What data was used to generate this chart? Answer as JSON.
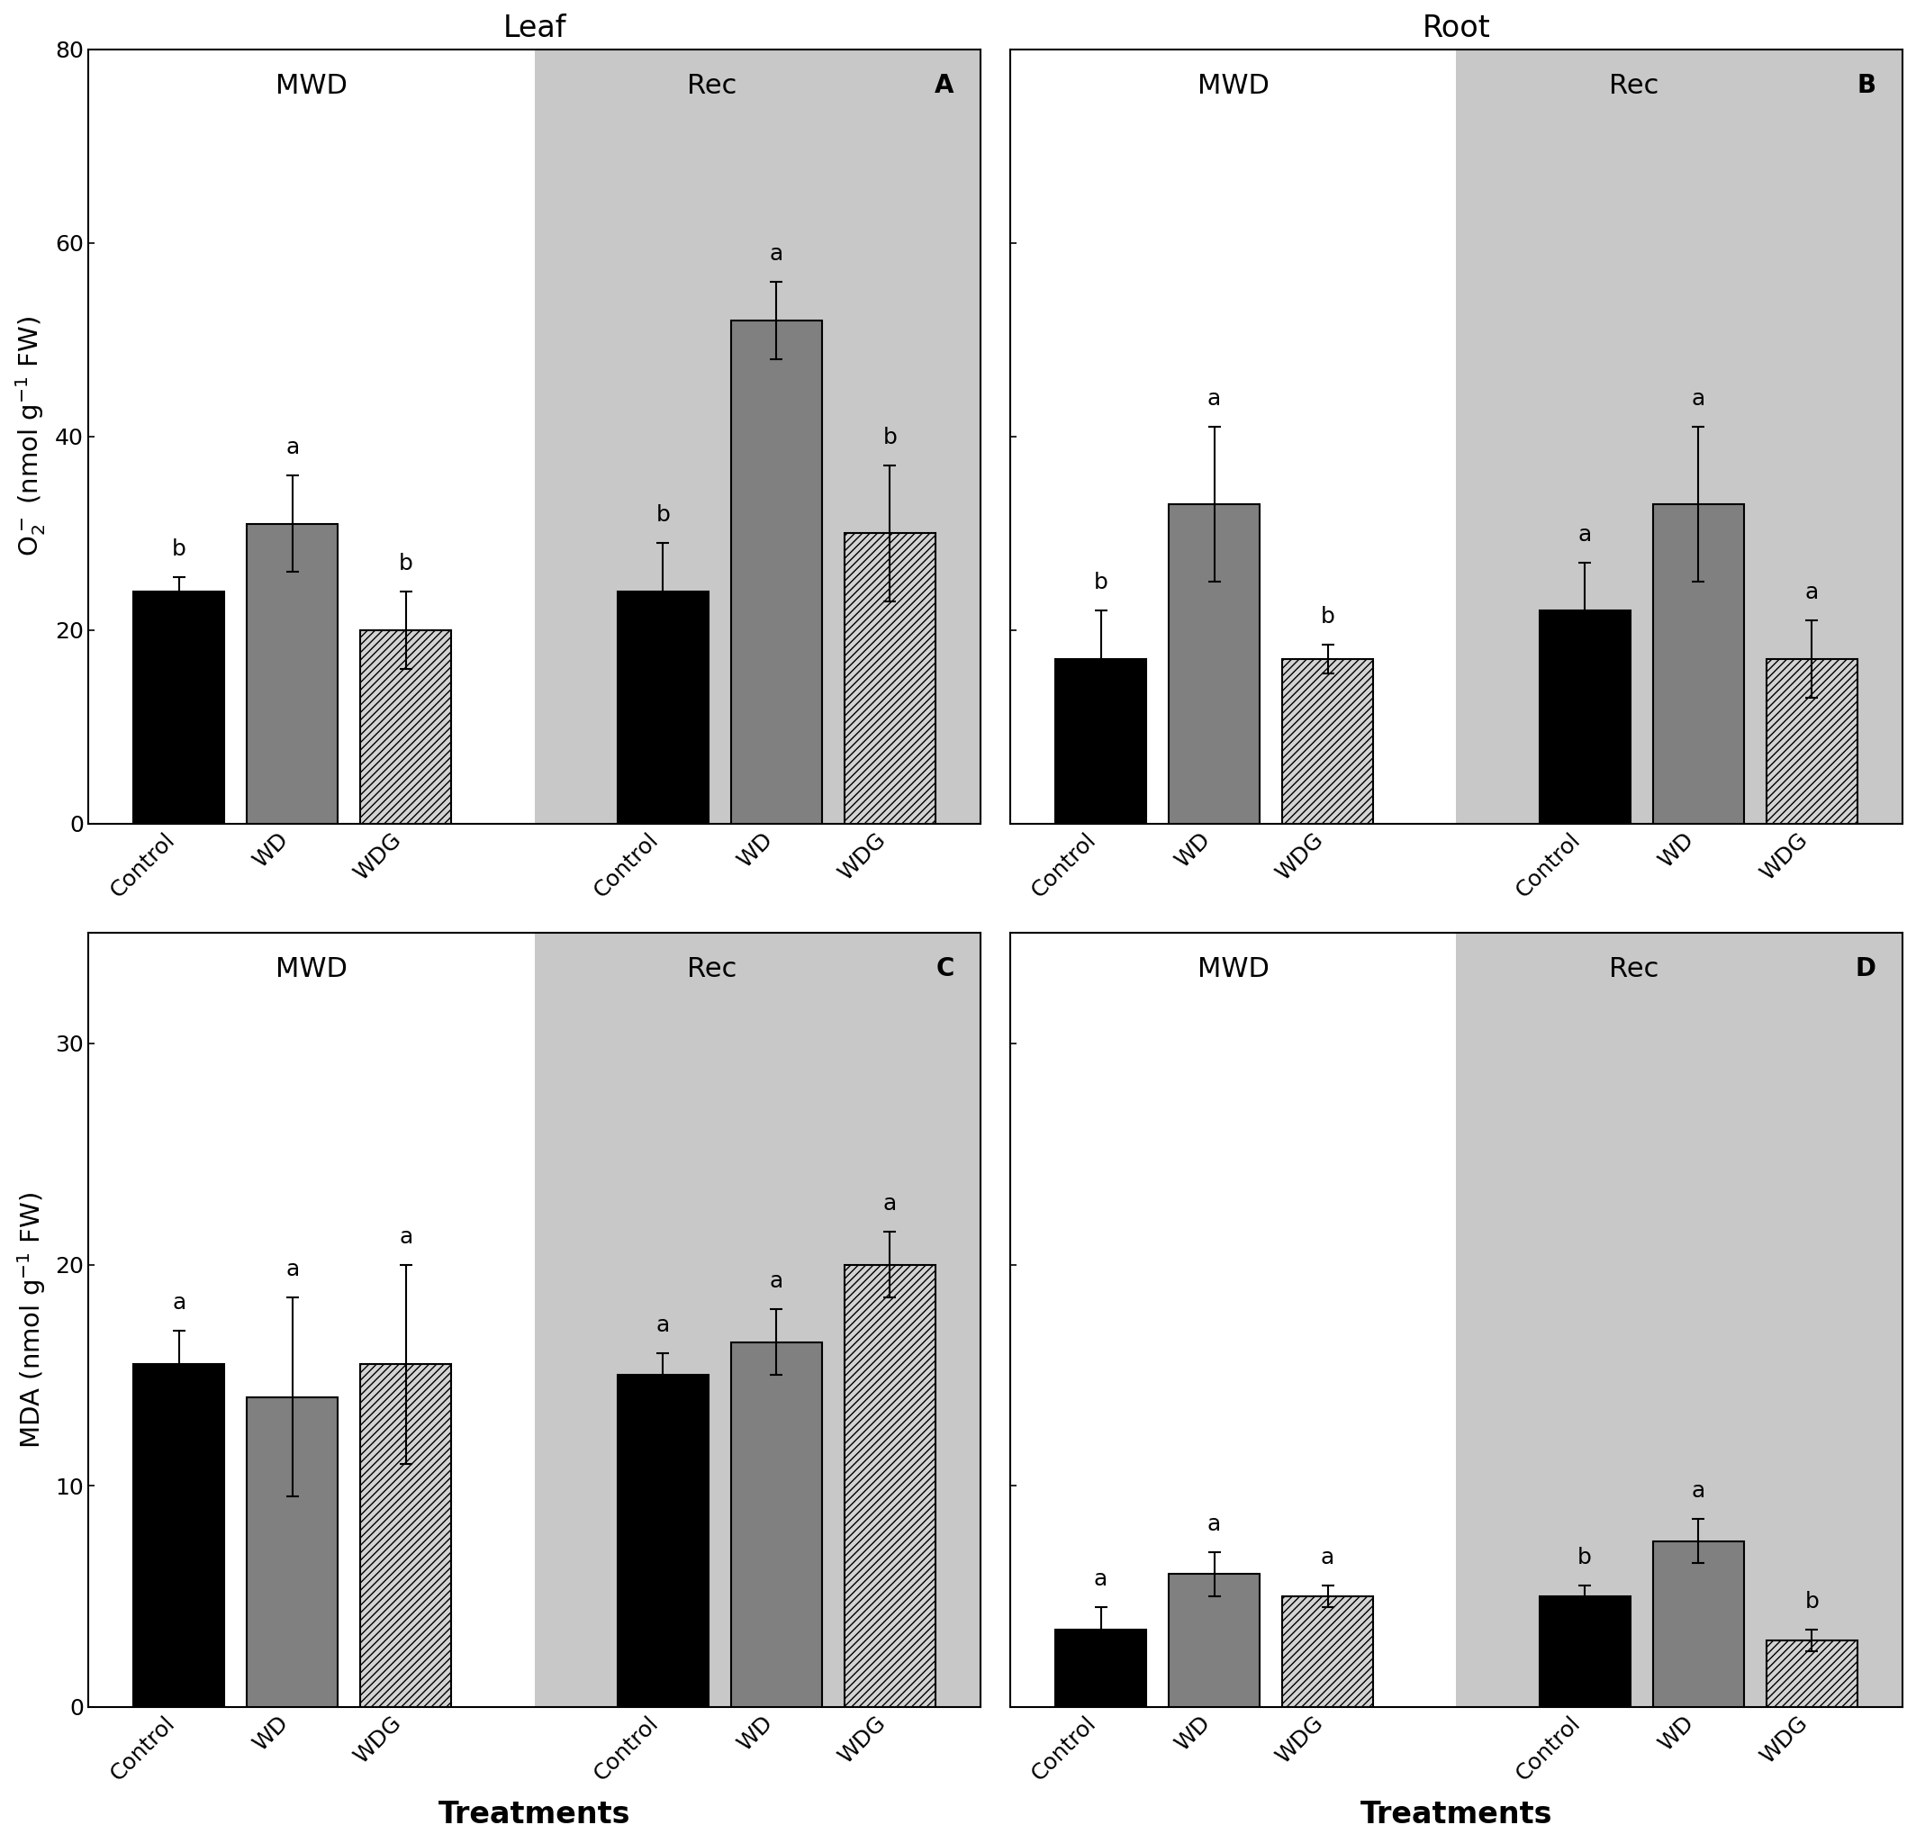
{
  "panels": {
    "A": {
      "label": "A",
      "ylim": [
        0,
        80
      ],
      "yticks": [
        0,
        20,
        40,
        60,
        80
      ],
      "MWD_values": [
        24,
        31,
        20
      ],
      "MWD_errors": [
        1.5,
        5,
        4
      ],
      "Rec_values": [
        24,
        52,
        30
      ],
      "Rec_errors": [
        5,
        4,
        7
      ],
      "MWD_letters": [
        "b",
        "a",
        "b"
      ],
      "Rec_letters": [
        "b",
        "a",
        "b"
      ]
    },
    "B": {
      "label": "B",
      "ylim": [
        0,
        80
      ],
      "yticks": [
        0,
        20,
        40,
        60,
        80
      ],
      "MWD_values": [
        17,
        33,
        17
      ],
      "MWD_errors": [
        5,
        8,
        1.5
      ],
      "Rec_values": [
        22,
        33,
        17
      ],
      "Rec_errors": [
        5,
        8,
        4
      ],
      "MWD_letters": [
        "b",
        "a",
        "b"
      ],
      "Rec_letters": [
        "a",
        "a",
        "a"
      ]
    },
    "C": {
      "label": "C",
      "ylim": [
        0,
        35
      ],
      "yticks": [
        0,
        10,
        20,
        30
      ],
      "MWD_values": [
        15.5,
        14,
        15.5
      ],
      "MWD_errors": [
        1.5,
        4.5,
        4.5
      ],
      "Rec_values": [
        15,
        16.5,
        20
      ],
      "Rec_errors": [
        1.0,
        1.5,
        1.5
      ],
      "MWD_letters": [
        "a",
        "a",
        "a"
      ],
      "Rec_letters": [
        "a",
        "a",
        "a"
      ]
    },
    "D": {
      "label": "D",
      "ylim": [
        0,
        35
      ],
      "yticks": [
        0,
        10,
        20,
        30
      ],
      "MWD_values": [
        3.5,
        6,
        5
      ],
      "MWD_errors": [
        1.0,
        1.0,
        0.5
      ],
      "Rec_values": [
        5,
        7.5,
        3
      ],
      "Rec_errors": [
        0.5,
        1.0,
        0.5
      ],
      "MWD_letters": [
        "a",
        "a",
        "a"
      ],
      "Rec_letters": [
        "b",
        "a",
        "b"
      ]
    }
  },
  "categories": [
    "Control",
    "WD",
    "WDG"
  ],
  "mwd_bg": "#ffffff",
  "rec_bg": "#c8c8c8",
  "bar_width": 0.6,
  "fontsize_ylabel": 21,
  "fontsize_tick": 18,
  "fontsize_letter": 18,
  "fontsize_panel": 20,
  "fontsize_section": 22,
  "fontsize_title": 24,
  "fontsize_xlabel": 24
}
